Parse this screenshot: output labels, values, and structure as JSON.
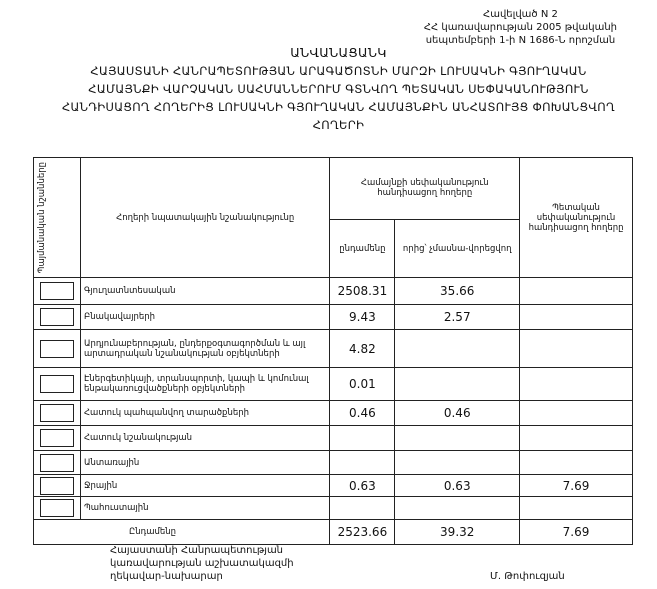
{
  "header": {
    "lines": [
      "Հավելված N 2",
      "ՀՀ կառավարության 2005 թվականի",
      "սեպտեմբերի 1-ի N 1686-Ն որոշման"
    ]
  },
  "title": "ԱՆՎԱՆԱՑԱՆԿ",
  "subtitle": [
    "ՀԱՅԱՍՏԱՆԻ ՀԱՆՐԱՊԵՏՈՒԹՅԱՆ ԱՐԱԳԱԾՈՏՆԻ ՄԱՐԶԻ ԼՈՒՍԱԿՆԻ ԳՅՈՒՂԱԿԱՆ",
    "ՀԱՄԱՅՆՔԻ ՎԱՐՉԱԿԱՆ ՍԱՀՄԱՆՆԵՐՈՒՄ ԳՏՆՎՈՂ ՊԵՏԱԿԱՆ ՍԵՓԱԿԱՆՈՒԹՅՈՒՆ",
    "ՀԱՆԴԻՍԱՑՈՂ ՀՈՂԵՐԻՑ ԼՈՒՍԱԿՆԻ ԳՅՈՒՂԱԿԱՆ ՀԱՄԱՅՆՔԻՆ ԱՆՀԱՏՈՒՅՑ ՓՈԽԱՆՑՎՈՂ",
    "ՀՈՂԵՐԻ"
  ],
  "table": {
    "headers": {
      "symbols": "Պայմանական նշանները",
      "purpose": "Հողերի նպատակային նշանակությունը",
      "community": "Համայնքի սեփականություն հանդիսացող հողերը",
      "total": "ընդամենը",
      "of_which": "որից՝ չմասնա-վորեցվող",
      "state": "Պետական սեփականություն հանդիսացող հողերը"
    },
    "rows": [
      {
        "label": "Գյուղատնտեսական",
        "total": "2508.31",
        "of_which": "35.66",
        "state": ""
      },
      {
        "label": "Բնակավայրերի",
        "total": "9.43",
        "of_which": "2.57",
        "state": ""
      },
      {
        "label": "Արդյունաբերության, ընդերքօգտագործման և այլ արտադրական նշանակության օբյեկտների",
        "total": "4.82",
        "of_which": "",
        "state": ""
      },
      {
        "label": "Էներգետիկայի, տրանսպորտի, կապի և կոմունալ ենթակառուցվածքների օբյեկտների",
        "total": "0.01",
        "of_which": "",
        "state": ""
      },
      {
        "label": "Հատուկ պահպանվող տարածքների",
        "total": "0.46",
        "of_which": "0.46",
        "state": ""
      },
      {
        "label": "Հատուկ նշանակության",
        "total": "",
        "of_which": "",
        "state": ""
      },
      {
        "label": "Անտառային",
        "total": "",
        "of_which": "",
        "state": ""
      },
      {
        "label": "Ջրային",
        "total": "0.63",
        "of_which": "0.63",
        "state": "7.69"
      },
      {
        "label": "Պահուստային",
        "total": "",
        "of_which": "",
        "state": ""
      }
    ],
    "sum": {
      "label": "Ընդամենը",
      "total": "2523.66",
      "of_which": "39.32",
      "state": "7.69"
    }
  },
  "footer": {
    "position": [
      "Հայաստանի Հանրապետության",
      "կառավարության աշխատակազմի",
      "ղեկավար-նախարար"
    ],
    "name": "Մ. Թոփուզյան"
  }
}
